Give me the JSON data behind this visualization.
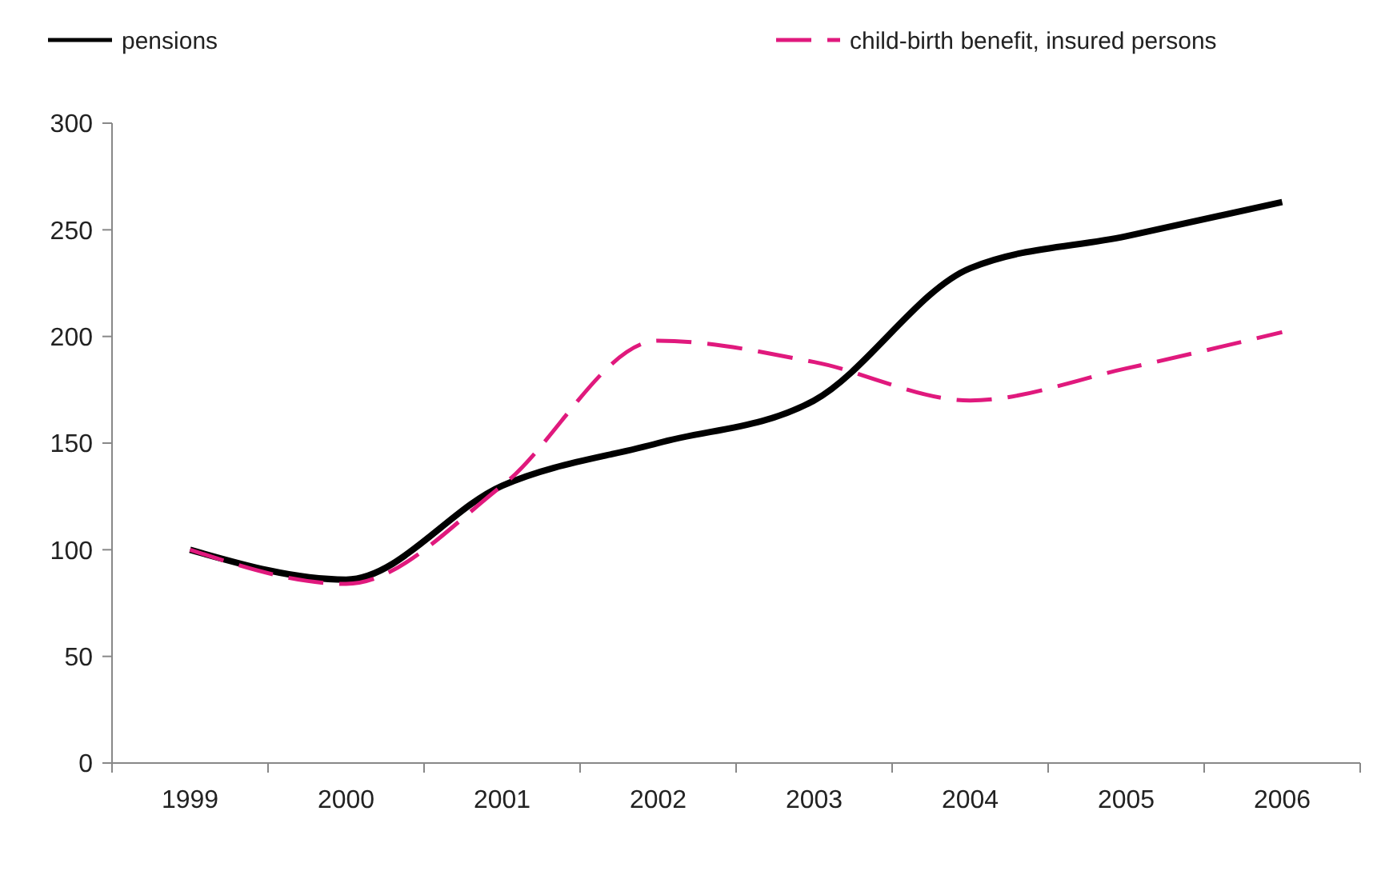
{
  "chart_data": {
    "type": "line",
    "categories": [
      "1999",
      "2000",
      "2001",
      "2002",
      "2003",
      "2004",
      "2005",
      "2006"
    ],
    "series": [
      {
        "name": "pensions",
        "color": "#000000",
        "line_style": "solid",
        "values": [
          100,
          86,
          130,
          150,
          170,
          232,
          247,
          263
        ]
      },
      {
        "name": "child-birth benefit, insured persons",
        "color": "#e0197d",
        "line_style": "dashed",
        "values": [
          100,
          84,
          130,
          198,
          188,
          170,
          185,
          202
        ]
      }
    ],
    "ylim": [
      0,
      300
    ],
    "yticks": [
      0,
      50,
      100,
      150,
      200,
      250,
      300
    ],
    "grid": false,
    "legend": "top",
    "marker": "none"
  }
}
